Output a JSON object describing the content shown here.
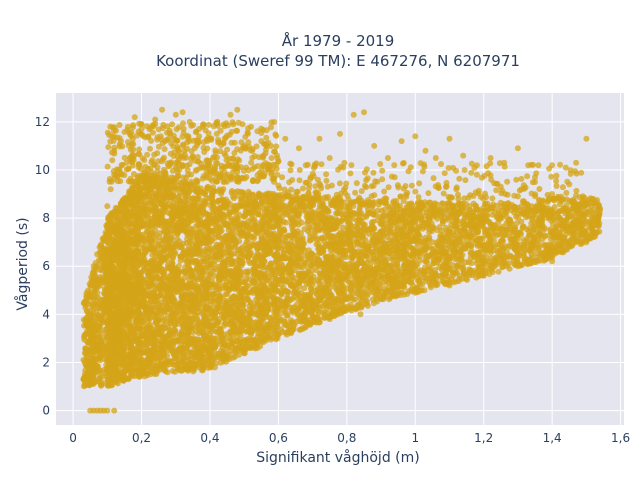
{
  "chart_data": {
    "type": "scatter",
    "title_line1": "År 1979 - 2019",
    "title_line2": "Koordinat (Sweref 99 TM): E 467276, N 6207971",
    "xlabel": "Signifikant våghöjd (m)",
    "ylabel": "Vågperiod (s)",
    "xlim": [
      -0.05,
      1.61
    ],
    "ylim": [
      -0.6,
      13.2
    ],
    "x_ticks": [
      0,
      0.2,
      0.4,
      0.6,
      0.8,
      1,
      1.2,
      1.4,
      1.6
    ],
    "x_tick_labels": [
      "0",
      "0,2",
      "0,4",
      "0,6",
      "0,8",
      "1",
      "1,2",
      "1,4",
      "1,6"
    ],
    "y_ticks": [
      0,
      2,
      4,
      6,
      8,
      10,
      12
    ],
    "y_tick_labels": [
      "0",
      "2",
      "4",
      "6",
      "8",
      "10",
      "12"
    ],
    "grid": true,
    "marker_color": "#d4a418",
    "marker_opacity": 0.75,
    "series": [
      {
        "points": [
          [
            0.05,
            0.0
          ],
          [
            0.06,
            0.0
          ],
          [
            0.07,
            0.0
          ],
          [
            0.08,
            0.0
          ],
          [
            0.09,
            0.0
          ],
          [
            0.1,
            0.0
          ],
          [
            0.12,
            0.0
          ],
          [
            0.03,
            2.1
          ],
          [
            0.03,
            1.3
          ],
          [
            0.04,
            1.1
          ],
          [
            0.05,
            3.3
          ],
          [
            0.05,
            2.0
          ],
          [
            0.06,
            4.2
          ],
          [
            0.06,
            6.0
          ],
          [
            0.07,
            6.5
          ],
          [
            0.08,
            5.2
          ],
          [
            0.1,
            8.5
          ],
          [
            0.11,
            9.2
          ],
          [
            0.12,
            10.8
          ],
          [
            0.14,
            11.2
          ],
          [
            0.16,
            11.8
          ],
          [
            0.18,
            12.2
          ],
          [
            0.2,
            11.9
          ],
          [
            0.22,
            11.4
          ],
          [
            0.24,
            12.1
          ],
          [
            0.26,
            12.5
          ],
          [
            0.28,
            11.3
          ],
          [
            0.3,
            12.3
          ],
          [
            0.32,
            12.4
          ],
          [
            0.34,
            11.2
          ],
          [
            0.36,
            11.6
          ],
          [
            0.38,
            11.9
          ],
          [
            0.4,
            11.3
          ],
          [
            0.42,
            11.5
          ],
          [
            0.44,
            11.1
          ],
          [
            0.46,
            12.3
          ],
          [
            0.48,
            12.5
          ],
          [
            0.5,
            11.0
          ],
          [
            0.52,
            11.8
          ],
          [
            0.55,
            11.2
          ],
          [
            0.58,
            10.5
          ],
          [
            0.62,
            11.3
          ],
          [
            0.66,
            10.9
          ],
          [
            0.68,
            10.2
          ],
          [
            0.72,
            11.3
          ],
          [
            0.75,
            10.5
          ],
          [
            0.78,
            11.5
          ],
          [
            0.82,
            12.3
          ],
          [
            0.85,
            12.4
          ],
          [
            0.88,
            11.0
          ],
          [
            0.92,
            10.5
          ],
          [
            0.96,
            11.2
          ],
          [
            1.0,
            11.4
          ],
          [
            1.03,
            10.8
          ],
          [
            1.06,
            10.5
          ],
          [
            1.1,
            11.3
          ],
          [
            1.14,
            10.6
          ],
          [
            1.18,
            10.2
          ],
          [
            1.22,
            10.5
          ],
          [
            1.26,
            10.3
          ],
          [
            1.3,
            10.9
          ],
          [
            1.33,
            10.2
          ],
          [
            1.36,
            10.2
          ],
          [
            1.4,
            10.2
          ],
          [
            1.44,
            10.1
          ],
          [
            1.47,
            10.3
          ],
          [
            1.5,
            11.3
          ],
          [
            1.52,
            8.8
          ],
          [
            1.53,
            8.6
          ],
          [
            1.54,
            8.4
          ],
          [
            1.0,
            9.1
          ],
          [
            1.05,
            8.5
          ],
          [
            1.12,
            9.2
          ],
          [
            1.18,
            9.8
          ],
          [
            1.25,
            9.3
          ],
          [
            1.3,
            8.9
          ],
          [
            1.35,
            9.5
          ],
          [
            1.4,
            9.0
          ],
          [
            1.45,
            9.4
          ],
          [
            0.84,
            4.0
          ],
          [
            0.75,
            3.8
          ],
          [
            0.68,
            4.3
          ],
          [
            0.58,
            3.5
          ],
          [
            0.55,
            3.1
          ],
          [
            0.52,
            2.9
          ],
          [
            0.48,
            2.5
          ],
          [
            0.45,
            2.6
          ],
          [
            0.4,
            2.2
          ],
          [
            1.0,
            4.9
          ],
          [
            1.1,
            5.2
          ],
          [
            1.2,
            5.6
          ],
          [
            1.3,
            6.0
          ],
          [
            1.4,
            6.2
          ],
          [
            1.5,
            7.0
          ]
        ]
      }
    ],
    "density_bands": [
      {
        "x_from": 0.03,
        "x_to": 0.1,
        "y_low_from": 1.0,
        "y_low_to": 1.0,
        "y_high_from": 4.5,
        "y_high_to": 8.0,
        "count": 420
      },
      {
        "x_from": 0.1,
        "x_to": 0.2,
        "y_low_from": 1.0,
        "y_low_to": 1.4,
        "y_high_from": 8.0,
        "y_high_to": 9.8,
        "count": 1300
      },
      {
        "x_from": 0.2,
        "x_to": 0.4,
        "y_low_from": 1.4,
        "y_low_to": 1.7,
        "y_high_from": 9.8,
        "y_high_to": 9.3,
        "count": 1700
      },
      {
        "x_from": 0.4,
        "x_to": 0.6,
        "y_low_from": 1.7,
        "y_low_to": 3.0,
        "y_high_from": 9.3,
        "y_high_to": 9.0,
        "count": 1300
      },
      {
        "x_from": 0.6,
        "x_to": 0.8,
        "y_low_from": 3.0,
        "y_low_to": 4.1,
        "y_high_from": 9.0,
        "y_high_to": 8.8,
        "count": 1000
      },
      {
        "x_from": 0.8,
        "x_to": 1.0,
        "y_low_from": 4.1,
        "y_low_to": 4.9,
        "y_high_from": 8.8,
        "y_high_to": 8.7,
        "count": 800
      },
      {
        "x_from": 1.0,
        "x_to": 1.2,
        "y_low_from": 4.9,
        "y_low_to": 5.6,
        "y_high_from": 8.7,
        "y_high_to": 8.6,
        "count": 600
      },
      {
        "x_from": 1.2,
        "x_to": 1.4,
        "y_low_from": 5.6,
        "y_low_to": 6.3,
        "y_high_from": 8.6,
        "y_high_to": 8.8,
        "count": 450
      },
      {
        "x_from": 1.4,
        "x_to": 1.54,
        "y_low_from": 6.3,
        "y_low_to": 7.3,
        "y_high_from": 8.8,
        "y_high_to": 8.9,
        "count": 300
      }
    ],
    "sparse_bands": [
      {
        "x_from": 0.1,
        "x_to": 0.6,
        "y_from": 9.5,
        "y_to": 12.0,
        "count": 500
      },
      {
        "x_from": 0.6,
        "x_to": 1.5,
        "y_from": 8.8,
        "y_to": 10.3,
        "count": 220
      }
    ]
  }
}
